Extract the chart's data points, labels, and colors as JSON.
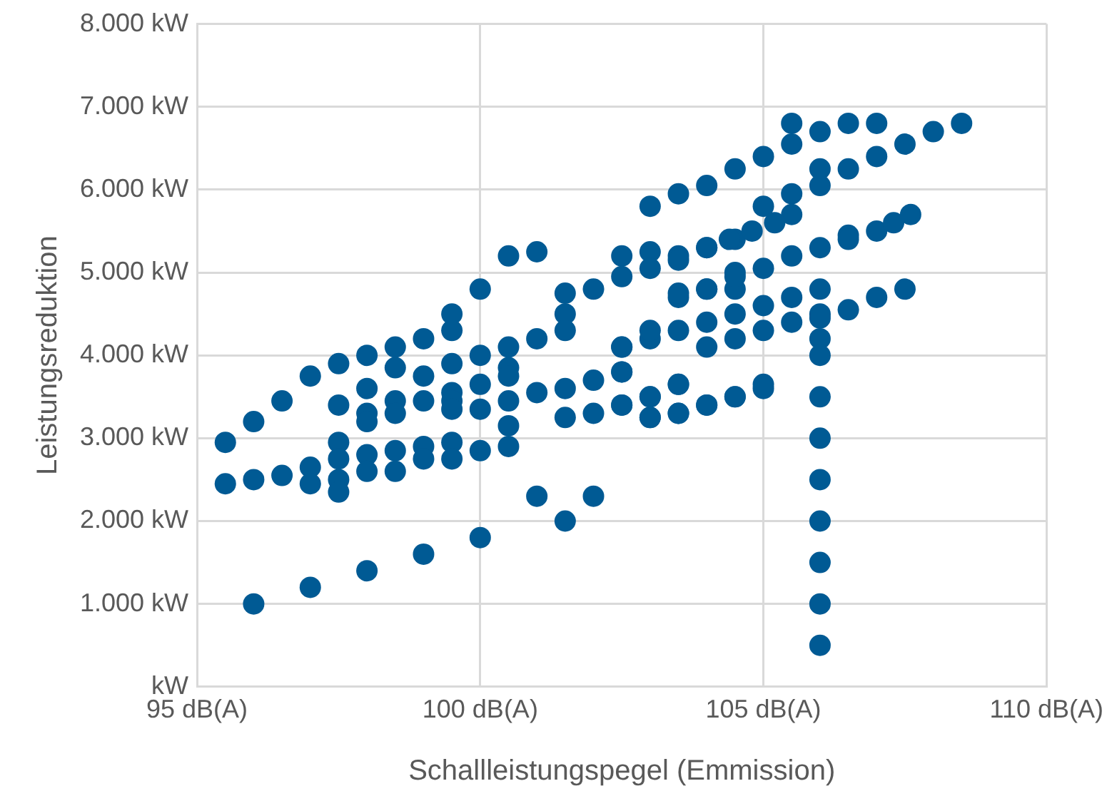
{
  "chart_data": {
    "type": "scatter",
    "xlabel": "Schallleistungspegel (Emmission)",
    "ylabel": "Leistungsreduktion",
    "xlim": [
      95,
      110
    ],
    "xticks": [
      {
        "value": 95,
        "label": "95 dB(A)"
      },
      {
        "value": 100,
        "label": "100 dB(A)"
      },
      {
        "value": 105,
        "label": "105 dB(A)"
      },
      {
        "value": 110,
        "label": "110 dB(A)"
      }
    ],
    "ylim": [
      0,
      8000
    ],
    "yticks": [
      {
        "value": 0,
        "label": "kW"
      },
      {
        "value": 1000,
        "label": "1.000 kW"
      },
      {
        "value": 2000,
        "label": "2.000 kW"
      },
      {
        "value": 3000,
        "label": "3.000 kW"
      },
      {
        "value": 4000,
        "label": "4.000 kW"
      },
      {
        "value": 5000,
        "label": "5.000 kW"
      },
      {
        "value": 6000,
        "label": "6.000 kW"
      },
      {
        "value": 7000,
        "label": "7.000 kW"
      },
      {
        "value": 8000,
        "label": "8.000 kW"
      }
    ],
    "grid": true,
    "legend": false,
    "marker": "circle",
    "series": [
      {
        "color": "#005a94",
        "x": [
          95.5,
          95.5,
          96,
          96,
          96,
          96.5,
          96.5,
          97,
          97,
          97,
          97,
          97.5,
          97.5,
          97.5,
          97.5,
          97.5,
          97.5,
          98,
          98,
          98,
          98,
          98,
          98,
          98,
          98.5,
          98.5,
          98.5,
          98.5,
          98.5,
          98.5,
          99,
          99,
          99,
          99,
          99,
          99,
          99.5,
          99.5,
          99.5,
          99.5,
          99.5,
          99.5,
          99.5,
          99.5,
          100,
          100,
          100,
          100,
          100,
          100,
          100.5,
          101,
          100.5,
          100.5,
          100.5,
          100.5,
          100.5,
          100.5,
          101,
          101,
          101,
          101.5,
          101.5,
          101.5,
          101.5,
          101.5,
          101.5,
          102,
          102,
          102,
          102,
          102.5,
          102.5,
          102.5,
          102.5,
          102.5,
          102.5,
          103,
          103,
          103,
          103,
          103,
          103,
          103.5,
          103.5,
          103.5,
          103.5,
          103.5,
          104,
          104,
          104,
          104,
          104,
          104.5,
          104.5,
          104.5,
          104.5,
          104.5,
          104.5,
          103,
          103.5,
          104,
          104.5,
          105,
          105.5,
          105.5,
          106,
          106.5,
          107,
          108,
          108.5,
          107.5,
          107,
          106.5,
          106,
          106,
          105.5,
          105,
          105.5,
          105.2,
          104.8,
          104.4,
          104,
          103.5,
          105,
          105.5,
          106,
          106.5,
          106.5,
          107,
          107.3,
          107.6,
          103.5,
          104,
          104.5,
          105,
          105.5,
          106,
          106,
          106.5,
          107,
          107.5,
          105,
          105.5,
          106,
          106,
          106,
          105,
          105,
          104.5,
          104,
          103.5,
          103.5,
          103,
          103,
          102.5,
          102.5,
          106,
          106,
          106,
          106,
          106,
          106,
          106
        ],
        "values": [
          2950,
          2450,
          3200,
          2500,
          1000,
          3450,
          2550,
          3750,
          2650,
          2450,
          1200,
          3900,
          3400,
          2950,
          2750,
          2500,
          2350,
          4000,
          3600,
          3300,
          3200,
          2800,
          2600,
          1400,
          4100,
          3850,
          3450,
          3300,
          2850,
          2600,
          4200,
          3750,
          3450,
          2900,
          2750,
          1600,
          4500,
          4300,
          3900,
          3550,
          3450,
          3350,
          2950,
          2750,
          4800,
          4000,
          3650,
          3350,
          2850,
          1800,
          5200,
          5250,
          4100,
          3850,
          3750,
          3450,
          3150,
          2900,
          4200,
          3550,
          2300,
          4750,
          4500,
          4300,
          3600,
          3250,
          2000,
          4800,
          3700,
          3300,
          2300,
          5200,
          4950,
          4100,
          3800,
          3400,
          3800,
          5250,
          5050,
          4200,
          3500,
          3250,
          4300,
          5200,
          4700,
          4300,
          3650,
          3300,
          5300,
          4800,
          4400,
          4100,
          3400,
          5400,
          5000,
          4800,
          4500,
          4200,
          3500,
          5800,
          5950,
          6050,
          6250,
          6400,
          6800,
          6550,
          6700,
          6800,
          6800,
          6700,
          6800,
          6550,
          6400,
          6250,
          6250,
          6050,
          5950,
          5800,
          5700,
          5600,
          5500,
          5400,
          5300,
          5150,
          5050,
          5200,
          5300,
          5450,
          5400,
          5500,
          5600,
          5700,
          4750,
          4800,
          4950,
          4600,
          4700,
          4800,
          4500,
          4550,
          4700,
          4800,
          4300,
          4400,
          4450,
          4200,
          4000,
          3650,
          3600,
          3500,
          3400,
          3650,
          3300,
          3500,
          3250,
          4100,
          3400,
          3500,
          3000,
          2500,
          2000,
          1500,
          1000,
          500
        ]
      }
    ]
  }
}
